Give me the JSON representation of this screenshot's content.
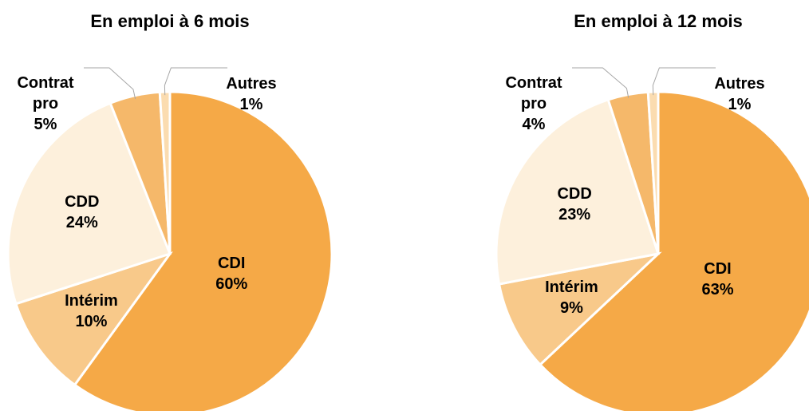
{
  "chart_data": [
    {
      "type": "pie",
      "title": "En emploi à 6 mois",
      "categories": [
        "CDI",
        "Intérim",
        "CDD",
        "Contrat pro",
        "Autres"
      ],
      "values": [
        60,
        10,
        24,
        5,
        1
      ],
      "value_labels": [
        "60%",
        "10%",
        "24%",
        "5%",
        "1%"
      ],
      "colors": [
        "#f5a947",
        "#f8c98a",
        "#fdf0dc",
        "#f5b86a",
        "#fbdcb0"
      ]
    },
    {
      "type": "pie",
      "title": "En emploi à 12 mois",
      "categories": [
        "CDI",
        "Intérim",
        "CDD",
        "Contrat pro",
        "Autres"
      ],
      "values": [
        63,
        9,
        23,
        4,
        1
      ],
      "value_labels": [
        "63%",
        "9%",
        "23%",
        "4%",
        "1%"
      ],
      "colors": [
        "#f5a947",
        "#f8c98a",
        "#fdf0dc",
        "#f5b86a",
        "#fbdcb0"
      ]
    }
  ]
}
